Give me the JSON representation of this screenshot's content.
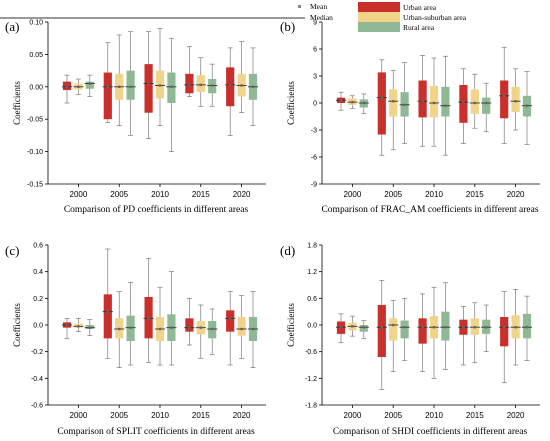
{
  "legend": {
    "mean_label": "Mean",
    "median_label": "Median",
    "series": [
      {
        "name": "Urban area",
        "color": "#c9302c"
      },
      {
        "name": "Urban-suburban area",
        "color": "#f2d38a"
      },
      {
        "name": "Rural area",
        "color": "#8fb894"
      }
    ]
  },
  "chart_data": [
    {
      "type": "boxplot",
      "panel_label": "(a)",
      "xlabel": "Comparison of PD coefficients in different areas",
      "ylabel": "Coefficients",
      "categories": [
        "2000",
        "2005",
        "2010",
        "2015",
        "2020"
      ],
      "ylim": [
        -0.15,
        0.1
      ],
      "yticks": [
        "0.10",
        "0.05",
        "0.00",
        "-0.05",
        "-0.10",
        "-0.15"
      ],
      "ytick_values": [
        0.1,
        0.05,
        0.0,
        -0.05,
        -0.1,
        -0.15
      ],
      "series": [
        {
          "name": "Urban area",
          "boxes": [
            {
              "min": -0.025,
              "q1": -0.005,
              "median": 0.0,
              "mean": 0.0,
              "q3": 0.008,
              "max": 0.018
            },
            {
              "min": -0.055,
              "q1": -0.05,
              "median": 0.0,
              "mean": 0.0,
              "q3": 0.022,
              "max": 0.068
            },
            {
              "min": -0.08,
              "q1": -0.04,
              "median": 0.005,
              "mean": 0.005,
              "q3": 0.035,
              "max": 0.085
            },
            {
              "min": -0.015,
              "q1": -0.01,
              "median": 0.003,
              "mean": 0.003,
              "q3": 0.02,
              "max": 0.062
            },
            {
              "min": -0.075,
              "q1": -0.03,
              "median": 0.003,
              "mean": 0.003,
              "q3": 0.03,
              "max": 0.06
            }
          ]
        },
        {
          "name": "Urban-suburban area",
          "boxes": [
            {
              "min": -0.012,
              "q1": -0.004,
              "median": 0.0,
              "mean": 0.0,
              "q3": 0.005,
              "max": 0.012
            },
            {
              "min": -0.06,
              "q1": -0.02,
              "median": 0.0,
              "mean": 0.0,
              "q3": 0.02,
              "max": 0.08
            },
            {
              "min": -0.06,
              "q1": -0.018,
              "median": 0.002,
              "mean": 0.002,
              "q3": 0.025,
              "max": 0.09
            },
            {
              "min": -0.03,
              "q1": -0.008,
              "median": 0.003,
              "mean": 0.003,
              "q3": 0.018,
              "max": 0.045
            },
            {
              "min": -0.04,
              "q1": -0.015,
              "median": 0.002,
              "mean": 0.002,
              "q3": 0.02,
              "max": 0.07
            }
          ]
        },
        {
          "name": "Rural area",
          "boxes": [
            {
              "min": -0.015,
              "q1": -0.003,
              "median": 0.005,
              "mean": 0.005,
              "q3": 0.008,
              "max": 0.018
            },
            {
              "min": -0.075,
              "q1": -0.02,
              "median": 0.0,
              "mean": 0.0,
              "q3": 0.025,
              "max": 0.085
            },
            {
              "min": -0.1,
              "q1": -0.025,
              "median": 0.0,
              "mean": 0.0,
              "q3": 0.022,
              "max": 0.075
            },
            {
              "min": -0.03,
              "q1": -0.01,
              "median": 0.002,
              "mean": 0.002,
              "q3": 0.012,
              "max": 0.035
            },
            {
              "min": -0.06,
              "q1": -0.02,
              "median": 0.0,
              "mean": 0.0,
              "q3": 0.02,
              "max": 0.06
            }
          ]
        }
      ]
    },
    {
      "type": "boxplot",
      "panel_label": "(b)",
      "xlabel": "Comparison of  FRAC_AM coefficients in different areas",
      "ylabel": "Coefficients",
      "categories": [
        "2000",
        "2005",
        "2010",
        "2015",
        "2020"
      ],
      "ylim": [
        -9,
        9
      ],
      "yticks": [
        "9",
        "6",
        "3",
        "0",
        "-3",
        "-6",
        "-9"
      ],
      "ytick_values": [
        9,
        6,
        3,
        0,
        -3,
        -6,
        -9
      ],
      "series": [
        {
          "name": "Urban area",
          "boxes": [
            {
              "min": -0.8,
              "q1": 0.0,
              "median": 0.3,
              "mean": 0.3,
              "q3": 0.6,
              "max": 1.2
            },
            {
              "min": -5.8,
              "q1": -3.5,
              "median": 0.6,
              "mean": 0.6,
              "q3": 3.4,
              "max": 4.8
            },
            {
              "min": -4.8,
              "q1": -1.6,
              "median": 0.2,
              "mean": 0.2,
              "q3": 2.5,
              "max": 5.3
            },
            {
              "min": -4.5,
              "q1": -2.2,
              "median": 0.1,
              "mean": 0.1,
              "q3": 2.0,
              "max": 3.8
            },
            {
              "min": -4.5,
              "q1": -1.7,
              "median": 0.8,
              "mean": 0.8,
              "q3": 2.5,
              "max": 6.2
            }
          ]
        },
        {
          "name": "Urban-suburban area",
          "boxes": [
            {
              "min": -0.6,
              "q1": -0.2,
              "median": 0.1,
              "mean": 0.1,
              "q3": 0.5,
              "max": 0.8
            },
            {
              "min": -5.2,
              "q1": -1.5,
              "median": 0.2,
              "mean": 0.2,
              "q3": 1.5,
              "max": 3.6
            },
            {
              "min": -4.8,
              "q1": -1.6,
              "median": 0.0,
              "mean": 0.0,
              "q3": 1.9,
              "max": 5.0
            },
            {
              "min": -2.8,
              "q1": -1.2,
              "median": 0.0,
              "mean": 0.0,
              "q3": 1.5,
              "max": 3.2
            },
            {
              "min": -3.0,
              "q1": -1.0,
              "median": 0.2,
              "mean": 0.2,
              "q3": 1.8,
              "max": 3.8
            }
          ]
        },
        {
          "name": "Rural area",
          "boxes": [
            {
              "min": -1.2,
              "q1": -0.5,
              "median": 0.0,
              "mean": 0.0,
              "q3": 0.4,
              "max": 1.0
            },
            {
              "min": -4.5,
              "q1": -1.5,
              "median": -0.2,
              "mean": -0.2,
              "q3": 1.2,
              "max": 4.5
            },
            {
              "min": -5.8,
              "q1": -1.5,
              "median": -0.3,
              "mean": -0.3,
              "q3": 1.8,
              "max": 5.2
            },
            {
              "min": -3.2,
              "q1": -1.2,
              "median": 0.0,
              "mean": 0.0,
              "q3": 0.6,
              "max": 2.2
            },
            {
              "min": -4.6,
              "q1": -1.5,
              "median": -0.3,
              "mean": -0.3,
              "q3": 0.8,
              "max": 3.5
            }
          ]
        }
      ]
    },
    {
      "type": "boxplot",
      "panel_label": "(c)",
      "xlabel": "Comparison of SPLIT coefficients in different areas",
      "ylabel": "Coefficients",
      "categories": [
        "2000",
        "2005",
        "2010",
        "2015",
        "2020"
      ],
      "ylim": [
        -0.6,
        0.6
      ],
      "yticks": [
        "0.6",
        "0.4",
        "0.2",
        "0.0",
        "-0.2",
        "-0.4",
        "-0.6"
      ],
      "ytick_values": [
        0.6,
        0.4,
        0.2,
        0.0,
        -0.2,
        -0.4,
        -0.6
      ],
      "series": [
        {
          "name": "Urban area",
          "boxes": [
            {
              "min": -0.1,
              "q1": -0.02,
              "median": 0.0,
              "mean": 0.0,
              "q3": 0.02,
              "max": 0.05
            },
            {
              "min": -0.25,
              "q1": -0.1,
              "median": 0.1,
              "mean": 0.1,
              "q3": 0.23,
              "max": 0.57
            },
            {
              "min": -0.28,
              "q1": -0.1,
              "median": 0.05,
              "mean": 0.05,
              "q3": 0.21,
              "max": 0.5
            },
            {
              "min": -0.15,
              "q1": -0.05,
              "median": -0.02,
              "mean": -0.02,
              "q3": 0.05,
              "max": 0.2
            },
            {
              "min": -0.3,
              "q1": -0.05,
              "median": 0.05,
              "mean": 0.05,
              "q3": 0.11,
              "max": 0.25
            }
          ]
        },
        {
          "name": "Urban-suburban area",
          "boxes": [
            {
              "min": -0.05,
              "q1": -0.02,
              "median": -0.01,
              "mean": -0.01,
              "q3": 0.01,
              "max": 0.05
            },
            {
              "min": -0.32,
              "q1": -0.1,
              "median": -0.03,
              "mean": -0.03,
              "q3": 0.05,
              "max": 0.25
            },
            {
              "min": -0.3,
              "q1": -0.12,
              "median": -0.03,
              "mean": -0.03,
              "q3": 0.06,
              "max": 0.28
            },
            {
              "min": -0.25,
              "q1": -0.07,
              "median": -0.02,
              "mean": -0.02,
              "q3": 0.03,
              "max": 0.15
            },
            {
              "min": -0.25,
              "q1": -0.08,
              "median": -0.03,
              "mean": -0.03,
              "q3": 0.06,
              "max": 0.22
            }
          ]
        },
        {
          "name": "Rural area",
          "boxes": [
            {
              "min": -0.08,
              "q1": -0.03,
              "median": -0.02,
              "mean": -0.02,
              "q3": 0.0,
              "max": 0.04
            },
            {
              "min": -0.3,
              "q1": -0.12,
              "median": -0.02,
              "mean": -0.02,
              "q3": 0.07,
              "max": 0.32
            },
            {
              "min": -0.3,
              "q1": -0.12,
              "median": -0.02,
              "mean": -0.02,
              "q3": 0.08,
              "max": 0.4
            },
            {
              "min": -0.22,
              "q1": -0.1,
              "median": -0.03,
              "mean": -0.03,
              "q3": 0.03,
              "max": 0.12
            },
            {
              "min": -0.32,
              "q1": -0.12,
              "median": -0.03,
              "mean": -0.03,
              "q3": 0.06,
              "max": 0.25
            }
          ]
        }
      ]
    },
    {
      "type": "boxplot",
      "panel_label": "(d)",
      "xlabel": "Comparison of  SHDI coefficients in different areas",
      "ylabel": "Coefficients",
      "categories": [
        "2000",
        "2005",
        "2010",
        "2015",
        "2020"
      ],
      "ylim": [
        -1.8,
        1.8
      ],
      "yticks": [
        "1.8",
        "1.2",
        "0.6",
        "0.0",
        "-0.6",
        "-1.2",
        "-1.8"
      ],
      "ytick_values": [
        1.8,
        1.2,
        0.6,
        0.0,
        -0.6,
        -1.2,
        -1.8
      ],
      "series": [
        {
          "name": "Urban area",
          "boxes": [
            {
              "min": -0.4,
              "q1": -0.2,
              "median": -0.05,
              "mean": -0.05,
              "q3": 0.08,
              "max": 0.25
            },
            {
              "min": -1.45,
              "q1": -0.72,
              "median": -0.05,
              "mean": -0.05,
              "q3": 0.45,
              "max": 1.0
            },
            {
              "min": -1.05,
              "q1": -0.42,
              "median": -0.05,
              "mean": -0.05,
              "q3": 0.15,
              "max": 0.7
            },
            {
              "min": -0.9,
              "q1": -0.22,
              "median": -0.05,
              "mean": -0.05,
              "q3": 0.12,
              "max": 0.42
            },
            {
              "min": -1.3,
              "q1": -0.48,
              "median": -0.05,
              "mean": -0.05,
              "q3": 0.18,
              "max": 0.75
            }
          ]
        },
        {
          "name": "Urban-suburban area",
          "boxes": [
            {
              "min": -0.25,
              "q1": -0.12,
              "median": -0.03,
              "mean": -0.03,
              "q3": 0.05,
              "max": 0.2
            },
            {
              "min": -1.05,
              "q1": -0.35,
              "median": 0.0,
              "mean": 0.0,
              "q3": 0.15,
              "max": 0.55
            },
            {
              "min": -1.2,
              "q1": -0.3,
              "median": -0.05,
              "mean": -0.05,
              "q3": 0.2,
              "max": 0.85
            },
            {
              "min": -0.85,
              "q1": -0.22,
              "median": -0.05,
              "mean": -0.05,
              "q3": 0.15,
              "max": 0.5
            },
            {
              "min": -0.9,
              "q1": -0.3,
              "median": -0.05,
              "mean": -0.05,
              "q3": 0.22,
              "max": 0.8
            }
          ]
        },
        {
          "name": "Rural area",
          "boxes": [
            {
              "min": -0.3,
              "q1": -0.15,
              "median": -0.05,
              "mean": -0.05,
              "q3": 0.0,
              "max": 0.1
            },
            {
              "min": -0.8,
              "q1": -0.3,
              "median": -0.05,
              "mean": -0.05,
              "q3": 0.1,
              "max": 0.6
            },
            {
              "min": -1.0,
              "q1": -0.35,
              "median": -0.05,
              "mean": -0.05,
              "q3": 0.3,
              "max": 0.95
            },
            {
              "min": -0.6,
              "q1": -0.2,
              "median": -0.05,
              "mean": -0.05,
              "q3": 0.12,
              "max": 0.45
            },
            {
              "min": -0.8,
              "q1": -0.3,
              "median": -0.05,
              "mean": -0.05,
              "q3": 0.25,
              "max": 0.65
            }
          ]
        }
      ]
    }
  ]
}
